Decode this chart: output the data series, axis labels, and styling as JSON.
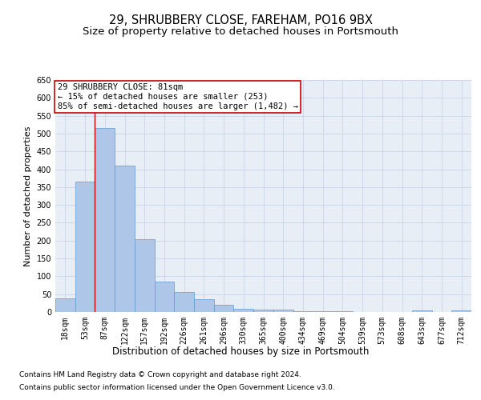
{
  "title1": "29, SHRUBBERY CLOSE, FAREHAM, PO16 9BX",
  "title2": "Size of property relative to detached houses in Portsmouth",
  "xlabel": "Distribution of detached houses by size in Portsmouth",
  "ylabel": "Number of detached properties",
  "bar_labels": [
    "18sqm",
    "53sqm",
    "87sqm",
    "122sqm",
    "157sqm",
    "192sqm",
    "226sqm",
    "261sqm",
    "296sqm",
    "330sqm",
    "365sqm",
    "400sqm",
    "434sqm",
    "469sqm",
    "504sqm",
    "539sqm",
    "573sqm",
    "608sqm",
    "643sqm",
    "677sqm",
    "712sqm"
  ],
  "bar_heights": [
    37,
    365,
    515,
    410,
    205,
    85,
    55,
    36,
    20,
    10,
    6,
    6,
    2,
    2,
    2,
    1,
    1,
    1,
    5,
    1,
    5
  ],
  "bar_color": "#aec6e8",
  "bar_edge_color": "#5b9bd5",
  "grid_color": "#c8d4e8",
  "background_color": "#e8eef6",
  "vline_color": "#cc0000",
  "vline_x": 1.5,
  "annotation_text": "29 SHRUBBERY CLOSE: 81sqm\n← 15% of detached houses are smaller (253)\n85% of semi-detached houses are larger (1,482) →",
  "annotation_box_facecolor": "#ffffff",
  "annotation_box_edgecolor": "#cc0000",
  "ylim": [
    0,
    650
  ],
  "yticks": [
    0,
    50,
    100,
    150,
    200,
    250,
    300,
    350,
    400,
    450,
    500,
    550,
    600,
    650
  ],
  "footnote1": "Contains HM Land Registry data © Crown copyright and database right 2024.",
  "footnote2": "Contains public sector information licensed under the Open Government Licence v3.0.",
  "title1_fontsize": 10.5,
  "title2_fontsize": 9.5,
  "xlabel_fontsize": 8.5,
  "ylabel_fontsize": 8,
  "tick_fontsize": 7,
  "annotation_fontsize": 7.5,
  "footnote_fontsize": 6.5
}
